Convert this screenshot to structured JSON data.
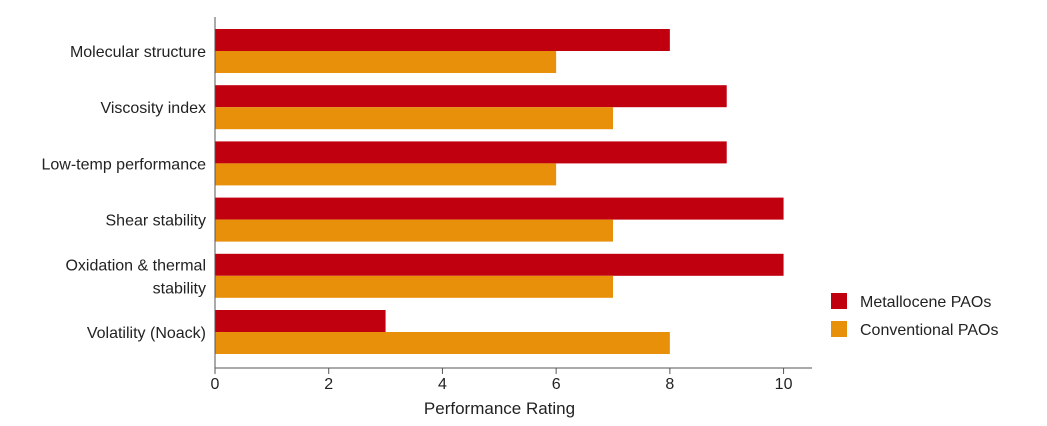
{
  "chart_data": {
    "type": "bar",
    "orientation": "horizontal",
    "categories": [
      [
        "Molecular structure"
      ],
      [
        "Viscosity index"
      ],
      [
        "Low-temp performance"
      ],
      [
        "Shear stability"
      ],
      [
        "Oxidation & thermal",
        "stability"
      ],
      [
        "Volatility (Noack)"
      ]
    ],
    "series": [
      {
        "name": "Metallocene PAOs",
        "color": "#c0000f",
        "values": [
          8,
          9,
          9,
          10,
          10,
          3
        ]
      },
      {
        "name": "Conventional PAOs",
        "color": "#e8900a",
        "values": [
          6,
          7,
          6,
          7,
          7,
          8
        ]
      }
    ],
    "xlabel": "Performance Rating",
    "ylabel": "",
    "xlim": [
      0,
      10.5
    ],
    "xticks": [
      "0",
      "2",
      "4",
      "6",
      "8",
      "10"
    ],
    "grid": false,
    "legend_position": "right"
  }
}
